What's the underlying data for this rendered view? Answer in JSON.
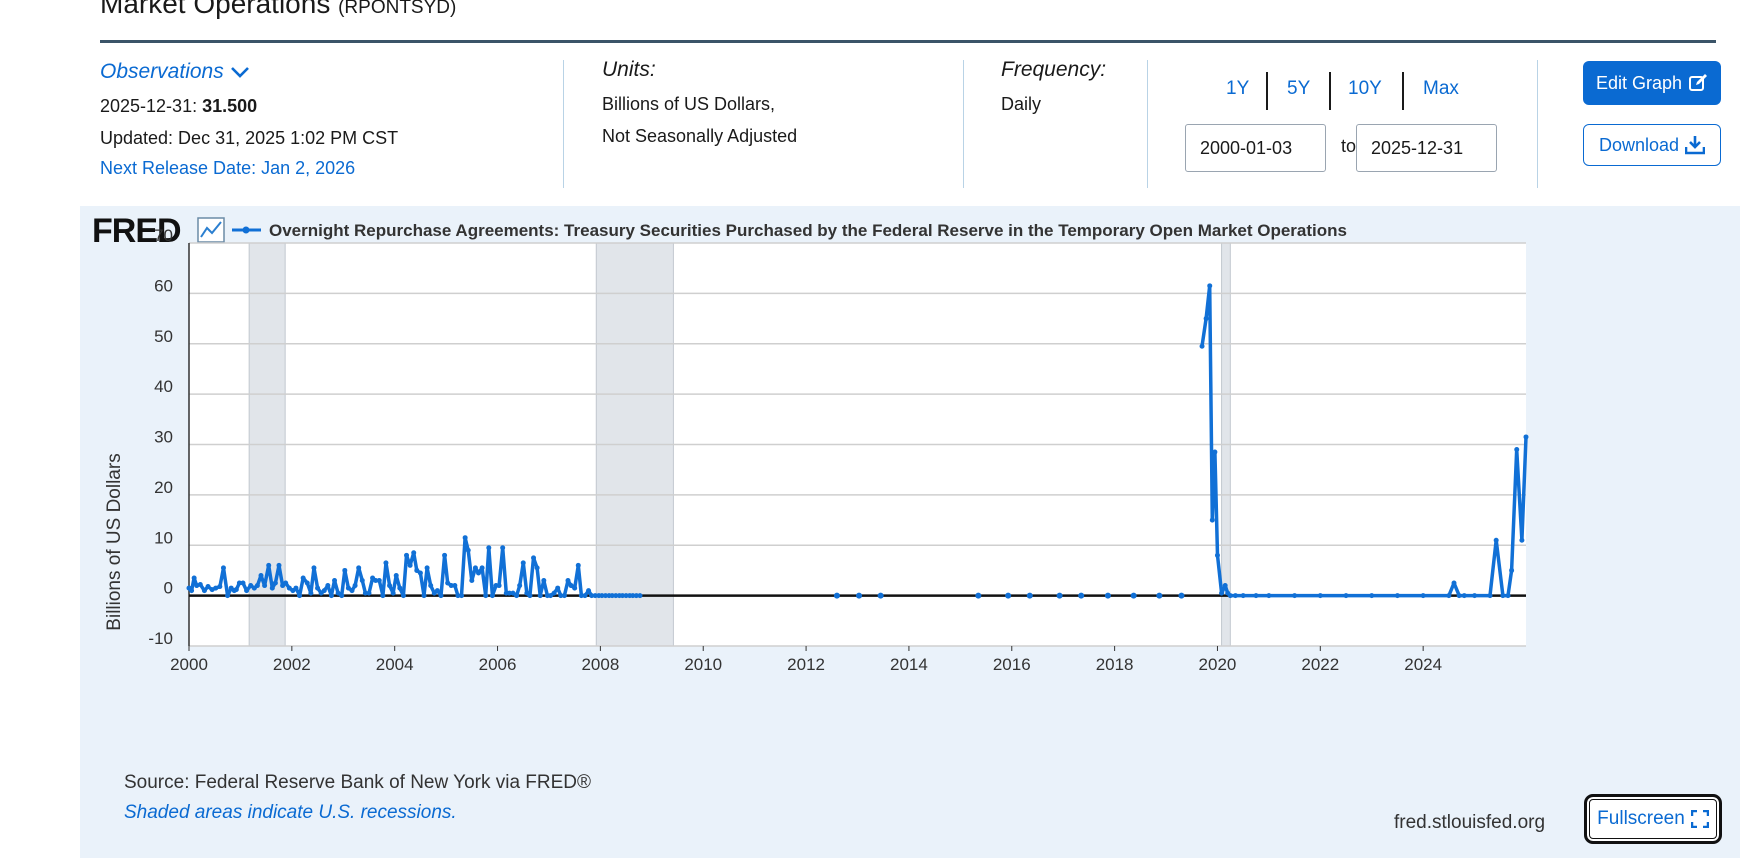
{
  "header": {
    "title": "Market Operations",
    "series_code": "(RPONTSYD)"
  },
  "observations": {
    "toggle_label": "Observations",
    "date_label": "2025-12-31:",
    "value": "31.500",
    "updated": "Updated: Dec 31, 2025 1:02 PM CST",
    "next_release": "Next Release Date: Jan 2, 2026"
  },
  "units": {
    "label": "Units:",
    "line1": "Billions of US Dollars,",
    "line2": "Not Seasonally Adjusted"
  },
  "frequency": {
    "label": "Frequency:",
    "value": "Daily"
  },
  "range": {
    "buttons": [
      "1Y",
      "5Y",
      "10Y",
      "Max"
    ],
    "start": "2000-01-03",
    "to_label": "to",
    "end": "2025-12-31"
  },
  "actions": {
    "edit_graph": "Edit Graph",
    "download": "Download"
  },
  "footer": {
    "source": "Source: Federal Reserve Bank of New York via FRED®",
    "shaded_note": "Shaded areas indicate U.S. recessions.",
    "site": "fred.stlouisfed.org",
    "fullscreen": "Fullscreen"
  },
  "colors": {
    "accent": "#0a6ad2",
    "line": "#1170d6",
    "recession": "#e1e5ea",
    "panel": "#eaf2fa"
  },
  "icons": {
    "logo": "fred-logo",
    "graph_icon": "line-graph-icon",
    "edit": "edit-icon",
    "download": "download-icon",
    "fullscreen": "fullscreen-icon",
    "dropdown": "chevron-down-icon"
  },
  "chart_data": {
    "type": "line",
    "brand": "FRED",
    "legend_label": "Overnight Repurchase Agreements: Treasury Securities Purchased by the Federal Reserve in the Temporary Open Market Operations",
    "ylabel": "Billions of US Dollars",
    "xlabel": "",
    "xlim": [
      2000.0,
      2026.0
    ],
    "ylim": [
      -10,
      70
    ],
    "yticks": [
      -10,
      0,
      10,
      20,
      30,
      40,
      50,
      60,
      70
    ],
    "xticks": [
      2000,
      2002,
      2004,
      2006,
      2008,
      2010,
      2012,
      2014,
      2016,
      2018,
      2020,
      2022,
      2024
    ],
    "grid": true,
    "legend_position": "top-left",
    "recessions": [
      [
        2001.17,
        2001.87
      ],
      [
        2007.92,
        2009.42
      ],
      [
        2020.08,
        2020.25
      ]
    ],
    "series": [
      {
        "segments": [
          {
            "x": [
              2000.0,
              2000.05,
              2000.1,
              2000.15,
              2000.22,
              2000.3,
              2000.37,
              2000.45,
              2000.52,
              2000.6,
              2000.67,
              2000.75,
              2000.82,
              2000.88,
              2000.92,
              2000.98,
              2001.05,
              2001.12,
              2001.2,
              2001.27,
              2001.33,
              2001.4,
              2001.47,
              2001.55,
              2001.62,
              2001.68,
              2001.75,
              2001.82,
              2001.88,
              2001.95,
              2002.02,
              2002.08,
              2002.15,
              2002.22,
              2002.3,
              2002.37,
              2002.43,
              2002.5,
              2002.57,
              2002.63,
              2002.7,
              2002.77,
              2002.83,
              2002.9,
              2002.97,
              2003.03,
              2003.1,
              2003.17,
              2003.23,
              2003.3,
              2003.37,
              2003.43,
              2003.5,
              2003.57,
              2003.63,
              2003.7,
              2003.77,
              2003.83,
              2003.9,
              2003.97,
              2004.03,
              2004.1,
              2004.17,
              2004.23,
              2004.3,
              2004.37,
              2004.43,
              2004.5,
              2004.57,
              2004.63,
              2004.7,
              2004.77,
              2004.83,
              2004.9,
              2004.97,
              2005.03,
              2005.1,
              2005.17,
              2005.23,
              2005.3,
              2005.37,
              2005.43,
              2005.5,
              2005.57,
              2005.63,
              2005.7,
              2005.77,
              2005.83,
              2005.9,
              2005.97,
              2006.03,
              2006.1,
              2006.17,
              2006.23,
              2006.3,
              2006.37,
              2006.43,
              2006.5,
              2006.57,
              2006.63,
              2006.7,
              2006.77,
              2006.83,
              2006.9,
              2006.97,
              2007.03,
              2007.1,
              2007.17,
              2007.23,
              2007.3,
              2007.37,
              2007.43,
              2007.5,
              2007.57,
              2007.63,
              2007.7,
              2007.77,
              2007.83,
              2007.9,
              2007.97,
              2008.03,
              2008.1,
              2008.17,
              2008.23,
              2008.3,
              2008.37,
              2008.43,
              2008.5,
              2008.57,
              2008.63,
              2008.7,
              2008.77
            ],
            "y": [
              1.5,
              1.0,
              3.5,
              2.0,
              2.2,
              1.0,
              1.8,
              1.2,
              1.5,
              1.8,
              5.5,
              0.0,
              1.5,
              1.0,
              1.2,
              2.5,
              2.5,
              1.0,
              2.0,
              1.5,
              2.0,
              4.0,
              2.0,
              6.0,
              1.5,
              2.5,
              6.0,
              2.0,
              2.5,
              1.5,
              1.0,
              1.5,
              0.0,
              3.5,
              2.5,
              0.5,
              5.5,
              1.5,
              0.5,
              1.0,
              2.0,
              0.0,
              3.0,
              0.5,
              0.0,
              5.0,
              1.5,
              1.0,
              2.0,
              5.5,
              3.0,
              0.5,
              0.5,
              3.5,
              3.0,
              3.0,
              0.0,
              6.5,
              2.0,
              0.5,
              4.0,
              1.5,
              0.0,
              8.0,
              6.0,
              8.5,
              5.0,
              4.5,
              0.0,
              5.5,
              2.0,
              0.5,
              1.0,
              0.0,
              8.0,
              2.5,
              2.0,
              2.0,
              0.0,
              0.0,
              11.5,
              9.0,
              3.0,
              5.5,
              4.5,
              5.5,
              0.0,
              9.5,
              0.0,
              2.0,
              2.0,
              9.5,
              0.5,
              0.5,
              0.5,
              0.0,
              2.0,
              6.5,
              0.5,
              0.0,
              7.5,
              5.5,
              0.0,
              3.0,
              0.0,
              0.0,
              0.5,
              1.5,
              0.0,
              0.0,
              3.0,
              2.0,
              1.5,
              6.0,
              0.0,
              0.0,
              1.0,
              0.0,
              0.0,
              0.0,
              0.0,
              0.0,
              0.0,
              0.0,
              0.0,
              0.0,
              0.0,
              0.0,
              0.0,
              0.0,
              0.0,
              0.0
            ]
          }
        ],
        "points": {
          "x": [
            2012.6,
            2013.03,
            2013.45,
            2015.35,
            2015.93,
            2016.35,
            2016.93,
            2017.35,
            2017.87,
            2018.37,
            2018.87,
            2019.3
          ],
          "y": [
            0,
            0,
            0,
            0,
            0,
            0,
            0,
            0,
            0,
            0,
            0,
            0
          ]
        },
        "late": {
          "x": [
            2019.7,
            2019.78,
            2019.85,
            2019.9,
            2019.95,
            2020.0,
            2020.08,
            2020.15,
            2020.2,
            2020.25,
            2020.35,
            2020.5,
            2020.75,
            2021.0,
            2021.5,
            2022.0,
            2022.5,
            2023.0,
            2023.5,
            2024.0,
            2024.5,
            2024.6,
            2024.7,
            2024.8,
            2025.0,
            2025.3,
            2025.42,
            2025.55,
            2025.65,
            2025.72,
            2025.82,
            2025.92,
            2026.0
          ],
          "y": [
            49.5,
            55.0,
            61.5,
            15.0,
            28.5,
            8.0,
            0.5,
            2.0,
            0.5,
            0.0,
            0.0,
            0.0,
            0.0,
            0.0,
            0.0,
            0.0,
            0.0,
            0.0,
            0.0,
            0.0,
            0.0,
            2.5,
            0.0,
            0.0,
            0.0,
            0.0,
            11.0,
            0.0,
            0.0,
            5.0,
            29.0,
            11.0,
            31.5
          ]
        }
      }
    ]
  }
}
